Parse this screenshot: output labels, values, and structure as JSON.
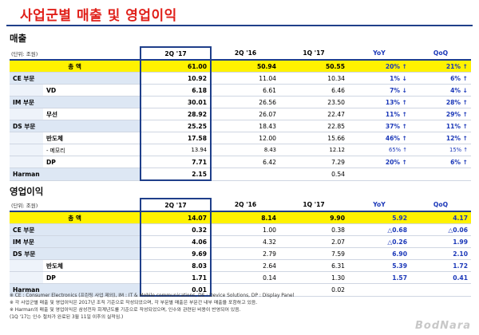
{
  "title": "사업군별 매출 및 영업이익",
  "sales": {
    "section": "매출",
    "unit": "(단위: 조원)",
    "headers": [
      "2Q '17",
      "2Q '16",
      "1Q '17",
      "YoY",
      "QoQ"
    ],
    "rows": [
      {
        "label": "총 액",
        "sub": "",
        "v": [
          "61.00",
          "50.94",
          "50.55",
          "20% ↑",
          "21% ↑"
        ]
      },
      {
        "label": "CE 부문",
        "sub": "",
        "v": [
          "10.92",
          "11.04",
          "10.34",
          "1% ↓",
          "6% ↑"
        ]
      },
      {
        "label": "",
        "sub": "VD",
        "v": [
          "6.18",
          "6.61",
          "6.46",
          "7% ↓",
          "4% ↓"
        ]
      },
      {
        "label": "IM 부문",
        "sub": "",
        "v": [
          "30.01",
          "26.56",
          "23.50",
          "13% ↑",
          "28% ↑"
        ]
      },
      {
        "label": "",
        "sub": "무선",
        "v": [
          "28.92",
          "26.07",
          "22.47",
          "11% ↑",
          "29% ↑"
        ]
      },
      {
        "label": "DS 부문",
        "sub": "",
        "v": [
          "25.25",
          "18.43",
          "22.85",
          "37% ↑",
          "11% ↑"
        ]
      },
      {
        "label": "",
        "sub": "반도체",
        "v": [
          "17.58",
          "12.00",
          "15.66",
          "46% ↑",
          "12% ↑"
        ]
      },
      {
        "label": "",
        "sub": "- 메모리",
        "v": [
          "13.94",
          "8.43",
          "12.12",
          "65% ↑",
          "15% ↑"
        ]
      },
      {
        "label": "",
        "sub": "DP",
        "v": [
          "7.71",
          "6.42",
          "7.29",
          "20% ↑",
          "6% ↑"
        ]
      },
      {
        "label": "Harman",
        "sub": "",
        "v": [
          "2.15",
          "",
          "0.54",
          "",
          ""
        ]
      }
    ]
  },
  "profit": {
    "section": "영업이익",
    "unit": "(단위: 조원)",
    "headers": [
      "2Q '17",
      "2Q '16",
      "1Q '17",
      "YoY",
      "QoQ"
    ],
    "rows": [
      {
        "label": "총 액",
        "sub": "",
        "v": [
          "14.07",
          "8.14",
          "9.90",
          "5.92",
          "4.17"
        ]
      },
      {
        "label": "CE 부문",
        "sub": "",
        "v": [
          "0.32",
          "1.00",
          "0.38",
          "△0.68",
          "△0.06"
        ]
      },
      {
        "label": "IM 부문",
        "sub": "",
        "v": [
          "4.06",
          "4.32",
          "2.07",
          "△0.26",
          "1.99"
        ]
      },
      {
        "label": "DS 부문",
        "sub": "",
        "v": [
          "9.69",
          "2.79",
          "7.59",
          "6.90",
          "2.10"
        ]
      },
      {
        "label": "",
        "sub": "반도체",
        "v": [
          "8.03",
          "2.64",
          "6.31",
          "5.39",
          "1.72"
        ]
      },
      {
        "label": "",
        "sub": "DP",
        "v": [
          "1.71",
          "0.14",
          "1.30",
          "1.57",
          "0.41"
        ]
      },
      {
        "label": "Harman",
        "sub": "",
        "v": [
          "0.01",
          "",
          "0.02",
          "",
          ""
        ]
      }
    ]
  },
  "notes": [
    "※ CE : Consumer Electronics (프린팅 사업 제외),  IM : IT & Mobile communications,  DS : Device Solutions,  DP : Display Panel",
    "※ 각 사업군별 매출 및 영업이익은 2017년 조직 기준으로 작성되었으며, 각 부문별 매출은 부문간 내부 매출을 포함하고 있음.",
    "※ Harman의 매출 및 영업이익은 삼성전자 회계년도를 기준으로 작성되었으며, 인수와 관련된 비용이 반영되어 있음.",
    "  (1Q '17는 인수 절차가 완료된 3월 11일 이후의 실적임.)"
  ],
  "watermark": "BodNara",
  "colors": {
    "title": "#e0201a",
    "accent": "#1f3f8a",
    "highlight": "#fff200",
    "up": "#1a37b8"
  }
}
